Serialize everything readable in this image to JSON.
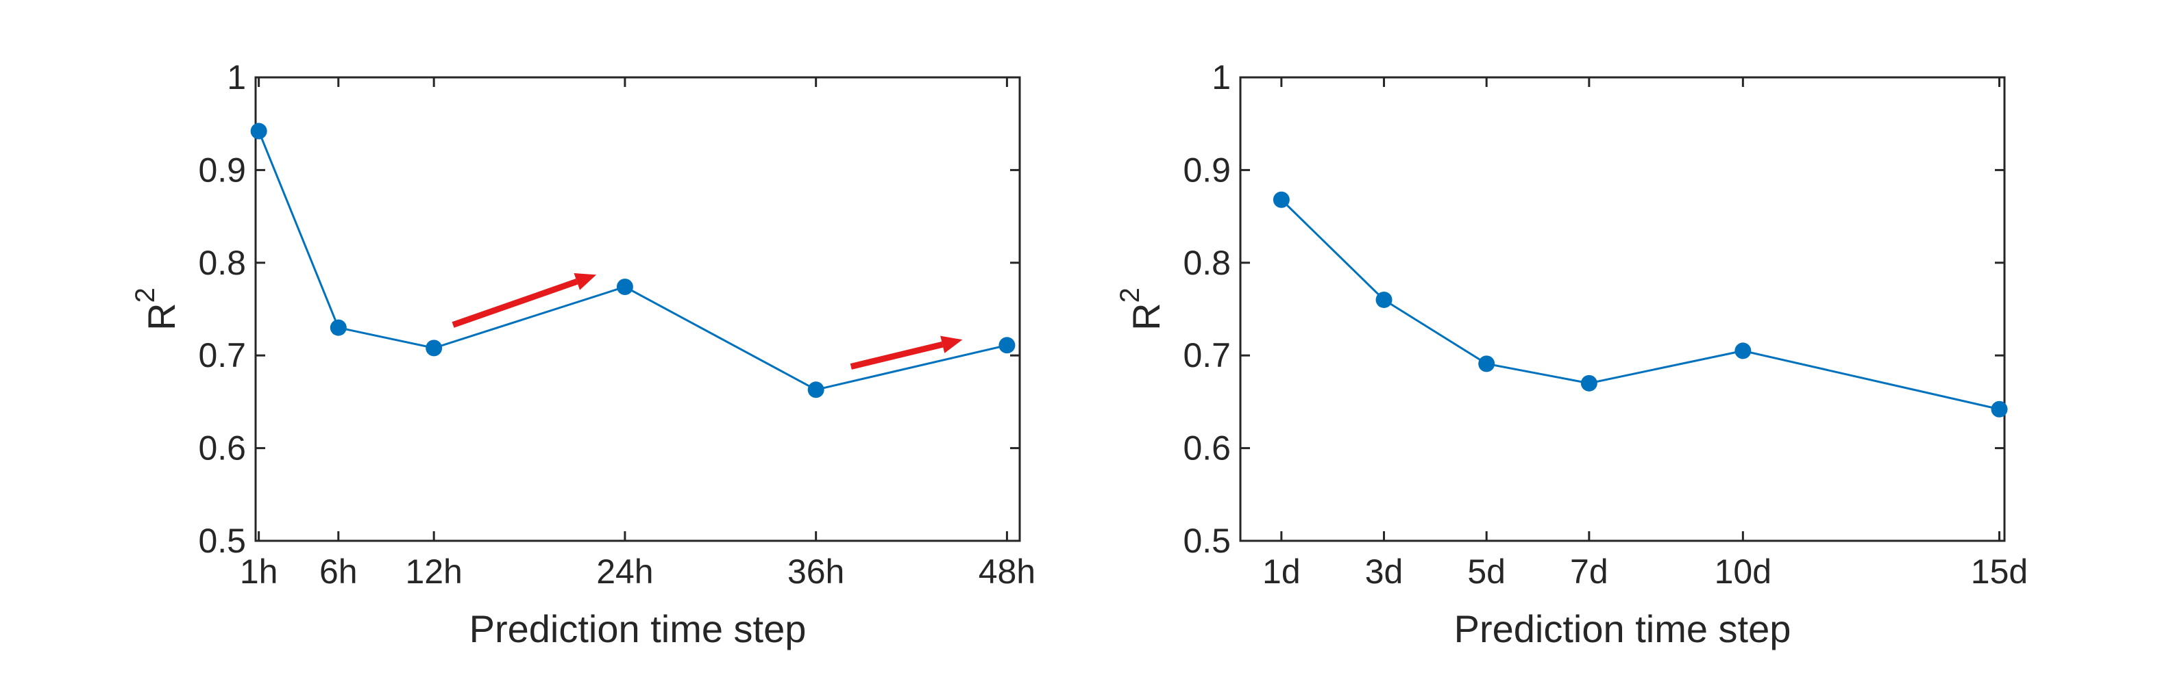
{
  "colors": {
    "series": "#0072BD",
    "arrow": "#E41A1C",
    "axis": "#262626",
    "background": "#ffffff"
  },
  "chart_data": [
    {
      "type": "line",
      "xlabel": "Prediction time step",
      "ylabel_base": "R",
      "ylabel_sup": "2",
      "ylim": [
        0.5,
        1
      ],
      "xlim": [
        0.8,
        48.8
      ],
      "yticks": [
        0.5,
        0.6,
        0.7,
        0.8,
        0.9,
        1
      ],
      "ytick_labels": [
        "0.5",
        "0.6",
        "0.7",
        "0.8",
        "0.9",
        "1"
      ],
      "x": [
        1,
        6,
        12,
        24,
        36,
        48
      ],
      "xtick_labels": [
        "1h",
        "6h",
        "12h",
        "24h",
        "36h",
        "48h"
      ],
      "series": [
        {
          "values": [
            0.942,
            0.73,
            0.708,
            0.774,
            0.663,
            0.711
          ]
        }
      ],
      "annotations": [
        {
          "type": "arrow",
          "from": [
            13.2,
            0.733
          ],
          "to": [
            22.2,
            0.787
          ]
        },
        {
          "type": "arrow",
          "from": [
            38.2,
            0.688
          ],
          "to": [
            45.2,
            0.717
          ]
        }
      ],
      "grid": false,
      "box": true
    },
    {
      "type": "line",
      "xlabel": "Prediction time step",
      "ylabel_base": "R",
      "ylabel_sup": "2",
      "ylim": [
        0.5,
        1
      ],
      "xlim": [
        0.2,
        15.1
      ],
      "yticks": [
        0.5,
        0.6,
        0.7,
        0.8,
        0.9,
        1
      ],
      "ytick_labels": [
        "0.5",
        "0.6",
        "0.7",
        "0.8",
        "0.9",
        "1"
      ],
      "x": [
        1,
        3,
        5,
        7,
        10,
        15
      ],
      "xtick_labels": [
        "1d",
        "3d",
        "5d",
        "7d",
        "10d",
        "15d"
      ],
      "series": [
        {
          "values": [
            0.868,
            0.76,
            0.691,
            0.67,
            0.705,
            0.642
          ]
        }
      ],
      "annotations": [],
      "grid": false,
      "box": true
    }
  ]
}
